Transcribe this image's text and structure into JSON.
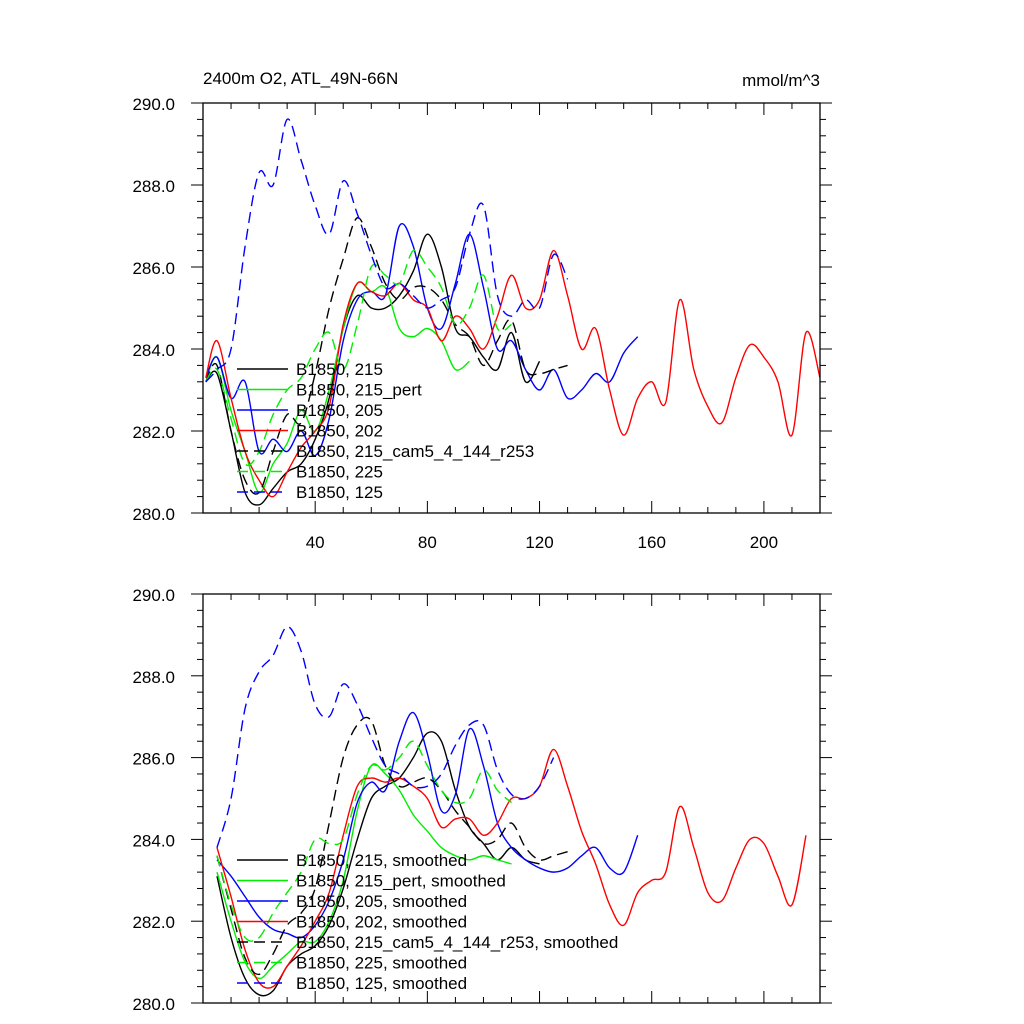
{
  "figure": {
    "title_left": "2400m O2, ATL_49N-66N",
    "title_right": "mmol/m^3"
  },
  "chart_data": [
    {
      "type": "line",
      "title": "2400m O2, ATL_49N-66N",
      "units": "mmol/m^3",
      "xlabel": "",
      "ylabel": "",
      "xlim": [
        0,
        220
      ],
      "ylim": [
        280,
        290
      ],
      "xticks": [
        40,
        80,
        120,
        160,
        200
      ],
      "xtick_labels": [
        "40",
        "80",
        "120",
        "160",
        "200"
      ],
      "yticks": [
        280,
        282,
        284,
        286,
        288,
        290
      ],
      "ytick_labels": [
        "280.0",
        "282.0",
        "284.0",
        "286.0",
        "288.0",
        "290.0"
      ],
      "grid": false,
      "legend_position": "lower-left",
      "series": [
        {
          "name": "B1850, 215",
          "color": "#000000",
          "dash": "solid",
          "x": [
            1,
            5,
            10,
            15,
            20,
            25,
            30,
            35,
            40,
            45,
            50,
            55,
            60,
            65,
            70,
            75,
            80,
            85,
            90,
            95,
            100,
            105,
            110,
            115,
            120
          ],
          "y": [
            283.2,
            283.4,
            282.0,
            280.5,
            280.2,
            280.6,
            281.0,
            281.2,
            281.8,
            282.8,
            284.5,
            285.3,
            285.0,
            285.0,
            285.3,
            285.9,
            286.8,
            286.0,
            284.5,
            284.3,
            283.8,
            283.5,
            284.4,
            283.2,
            283.7
          ]
        },
        {
          "name": "B1850, 215_pert",
          "color": "#00ee00",
          "dash": "solid",
          "x": [
            1,
            5,
            10,
            15,
            20,
            25,
            30,
            35,
            40,
            45,
            50,
            55,
            60,
            65,
            70,
            75,
            80,
            85,
            90,
            95
          ],
          "y": [
            283.2,
            283.8,
            282.5,
            281.5,
            280.5,
            281.2,
            281.7,
            282.5,
            282.0,
            283.0,
            284.5,
            285.6,
            285.4,
            285.5,
            284.5,
            284.3,
            284.5,
            284.2,
            283.5,
            283.7
          ]
        },
        {
          "name": "B1850, 205",
          "color": "#0000ff",
          "dash": "solid",
          "x": [
            1,
            5,
            10,
            15,
            20,
            25,
            30,
            35,
            40,
            45,
            50,
            55,
            60,
            65,
            70,
            75,
            80,
            85,
            90,
            95,
            100,
            105,
            110,
            115,
            120,
            125,
            130,
            135,
            140,
            145,
            150,
            155
          ],
          "y": [
            283.3,
            283.8,
            282.8,
            283.2,
            281.5,
            281.8,
            281.5,
            282.0,
            281.4,
            282.3,
            284.2,
            285.2,
            285.4,
            285.3,
            287.0,
            286.5,
            285.0,
            284.5,
            285.6,
            286.8,
            285.5,
            284.0,
            284.2,
            283.5,
            283.0,
            283.5,
            282.8,
            283.0,
            283.4,
            283.2,
            283.9,
            284.3
          ]
        },
        {
          "name": "B1850, 202",
          "color": "#ff0000",
          "dash": "solid",
          "x": [
            1,
            5,
            10,
            15,
            20,
            25,
            30,
            35,
            40,
            45,
            50,
            55,
            60,
            65,
            70,
            75,
            80,
            85,
            90,
            95,
            100,
            105,
            110,
            115,
            120,
            125,
            130,
            135,
            140,
            145,
            150,
            155,
            160,
            165,
            170,
            175,
            180,
            185,
            190,
            195,
            200,
            205,
            210,
            215,
            220
          ],
          "y": [
            283.3,
            284.2,
            282.8,
            281.5,
            280.8,
            280.4,
            281.0,
            281.6,
            282.0,
            282.6,
            284.6,
            285.6,
            285.4,
            285.3,
            285.6,
            285.2,
            285.0,
            284.2,
            284.8,
            284.5,
            284.0,
            284.8,
            285.8,
            285.0,
            285.2,
            286.4,
            285.3,
            284.0,
            284.5,
            283.0,
            281.9,
            282.8,
            283.2,
            282.7,
            285.2,
            283.5,
            282.6,
            282.2,
            283.3,
            284.1,
            283.8,
            283.2,
            281.9,
            284.4,
            283.3
          ]
        },
        {
          "name": "B1850, 215_cam5_4_144_r253",
          "color": "#000000",
          "dash": "dashed",
          "x": [
            1,
            5,
            10,
            15,
            20,
            25,
            30,
            35,
            40,
            45,
            50,
            55,
            60,
            65,
            70,
            75,
            80,
            85,
            90,
            95,
            100,
            105,
            110,
            115,
            120,
            125,
            130
          ],
          "y": [
            283.2,
            283.6,
            282.0,
            280.8,
            280.5,
            281.5,
            282.4,
            282.2,
            283.4,
            285.0,
            286.2,
            287.2,
            286.5,
            285.6,
            285.2,
            285.5,
            285.5,
            285.2,
            284.6,
            284.3,
            283.6,
            284.2,
            284.7,
            283.5,
            283.4,
            283.5,
            283.6
          ]
        },
        {
          "name": "B1850, 225",
          "color": "#00ee00",
          "dash": "dashed",
          "x": [
            1,
            5,
            10,
            15,
            20,
            25,
            30,
            35,
            40,
            45,
            50,
            55,
            60,
            65,
            70,
            75,
            80,
            85,
            90,
            95,
            100,
            105,
            110
          ],
          "y": [
            283.2,
            283.5,
            282.3,
            281.2,
            281.5,
            282.4,
            283.0,
            283.3,
            284.0,
            284.4,
            283.5,
            284.6,
            286.0,
            285.8,
            285.6,
            286.4,
            286.0,
            285.5,
            284.6,
            285.0,
            285.8,
            284.5,
            284.6
          ]
        },
        {
          "name": "B1850, 125",
          "color": "#0000ff",
          "dash": "dashed",
          "x": [
            1,
            5,
            10,
            15,
            20,
            25,
            30,
            35,
            40,
            45,
            50,
            55,
            60,
            65,
            70,
            75,
            80,
            85,
            90,
            95,
            100,
            105,
            110,
            115,
            120,
            125,
            130
          ],
          "y": [
            283.2,
            283.5,
            284.0,
            286.5,
            288.3,
            288.0,
            289.6,
            288.6,
            287.5,
            286.8,
            288.1,
            287.3,
            286.3,
            285.5,
            285.6,
            285.3,
            285.0,
            285.2,
            285.5,
            286.8,
            287.5,
            285.3,
            284.8,
            285.2,
            285.0,
            286.3,
            285.7
          ]
        }
      ]
    },
    {
      "type": "line",
      "title": "",
      "xlabel": "",
      "ylabel": "",
      "xlim": [
        0,
        220
      ],
      "ylim": [
        280,
        290
      ],
      "xticks": [
        40,
        80,
        120,
        160,
        200
      ],
      "xtick_labels": [],
      "yticks": [
        280,
        282,
        284,
        286,
        288,
        290
      ],
      "ytick_labels": [
        "280.0",
        "282.0",
        "284.0",
        "286.0",
        "288.0",
        "290.0"
      ],
      "grid": false,
      "legend_position": "lower-left",
      "series": [
        {
          "name": "B1850, 215, smoothed",
          "color": "#000000",
          "dash": "solid",
          "x": [
            5,
            10,
            15,
            20,
            25,
            30,
            35,
            40,
            45,
            50,
            55,
            60,
            65,
            70,
            75,
            80,
            85,
            90,
            95,
            100,
            105,
            110,
            115,
            120
          ],
          "y": [
            283.1,
            281.6,
            280.6,
            280.2,
            280.3,
            280.9,
            281.2,
            281.4,
            281.9,
            282.8,
            284.0,
            285.0,
            285.3,
            285.5,
            286.0,
            286.6,
            286.4,
            285.2,
            284.3,
            283.9,
            283.5,
            283.8,
            283.5,
            283.4
          ]
        },
        {
          "name": "B1850, 215_pert, smoothed",
          "color": "#00ee00",
          "dash": "solid",
          "x": [
            5,
            10,
            15,
            20,
            25,
            30,
            35,
            40,
            45,
            50,
            55,
            60,
            65,
            70,
            75,
            80,
            85,
            90,
            95,
            100,
            105,
            110
          ],
          "y": [
            283.2,
            282.0,
            281.0,
            280.6,
            280.9,
            281.2,
            281.5,
            281.5,
            282.0,
            283.0,
            284.7,
            285.8,
            285.6,
            285.2,
            284.6,
            284.2,
            283.8,
            283.6,
            283.5,
            283.6,
            283.5,
            283.4
          ]
        },
        {
          "name": "B1850, 205, smoothed",
          "color": "#0000ff",
          "dash": "solid",
          "x": [
            5,
            10,
            15,
            20,
            25,
            30,
            35,
            40,
            45,
            50,
            55,
            60,
            65,
            70,
            75,
            80,
            85,
            90,
            95,
            100,
            105,
            110,
            115,
            120,
            125,
            130,
            135,
            140,
            145,
            150,
            155
          ],
          "y": [
            283.5,
            283.1,
            282.6,
            282.1,
            281.8,
            281.7,
            281.6,
            281.9,
            282.5,
            283.5,
            284.9,
            285.4,
            285.2,
            286.4,
            287.1,
            286.1,
            284.7,
            285.1,
            286.7,
            285.8,
            284.4,
            283.8,
            283.5,
            283.3,
            283.2,
            283.3,
            283.6,
            283.8,
            283.3,
            283.2,
            284.1
          ]
        },
        {
          "name": "B1850, 202, smoothed",
          "color": "#ff0000",
          "dash": "solid",
          "x": [
            5,
            10,
            15,
            20,
            25,
            30,
            35,
            40,
            45,
            50,
            55,
            60,
            65,
            70,
            75,
            80,
            85,
            90,
            95,
            100,
            105,
            110,
            115,
            120,
            125,
            130,
            135,
            140,
            145,
            150,
            155,
            160,
            165,
            170,
            175,
            180,
            185,
            190,
            195,
            200,
            205,
            210,
            215
          ],
          "y": [
            283.8,
            282.6,
            281.3,
            280.5,
            280.4,
            280.9,
            281.4,
            282.0,
            282.7,
            284.1,
            285.3,
            285.5,
            285.4,
            285.5,
            285.3,
            285.0,
            284.3,
            284.5,
            284.5,
            284.1,
            284.4,
            285.0,
            285.0,
            285.3,
            286.2,
            285.3,
            284.2,
            283.4,
            282.4,
            281.9,
            282.7,
            283.0,
            283.2,
            284.8,
            283.8,
            282.7,
            282.5,
            283.3,
            284.0,
            283.9,
            283.1,
            282.4,
            284.1
          ]
        },
        {
          "name": "B1850, 215_cam5_4_144_r253, smoothed",
          "color": "#000000",
          "dash": "dashed",
          "x": [
            5,
            10,
            15,
            20,
            25,
            30,
            35,
            40,
            45,
            50,
            55,
            60,
            65,
            70,
            75,
            80,
            85,
            90,
            95,
            100,
            105,
            110,
            115,
            120,
            125,
            130
          ],
          "y": [
            283.6,
            282.3,
            281.1,
            280.7,
            281.2,
            281.9,
            282.2,
            282.8,
            284.4,
            286.0,
            286.8,
            286.9,
            285.8,
            285.3,
            285.4,
            285.5,
            285.2,
            284.7,
            284.3,
            283.9,
            284.0,
            284.4,
            283.8,
            283.5,
            283.6,
            283.7
          ]
        },
        {
          "name": "B1850, 225, smoothed",
          "color": "#00ee00",
          "dash": "dashed",
          "x": [
            5,
            10,
            15,
            20,
            25,
            30,
            35,
            40,
            45,
            50,
            55,
            60,
            65,
            70,
            75,
            80,
            85,
            90,
            95,
            100,
            105,
            110
          ],
          "y": [
            283.6,
            282.4,
            281.6,
            281.6,
            282.2,
            282.7,
            283.2,
            284.0,
            283.9,
            284.0,
            285.1,
            285.8,
            285.7,
            286.0,
            286.4,
            285.8,
            285.2,
            284.9,
            285.0,
            285.7,
            285.2,
            284.9
          ]
        },
        {
          "name": "B1850, 125, smoothed",
          "color": "#0000ff",
          "dash": "dashed",
          "x": [
            5,
            10,
            15,
            20,
            25,
            30,
            35,
            40,
            45,
            50,
            55,
            60,
            65,
            70,
            75,
            80,
            85,
            90,
            95,
            100,
            105,
            110,
            115,
            120,
            125
          ],
          "y": [
            283.8,
            285.0,
            287.2,
            288.1,
            288.5,
            289.2,
            288.6,
            287.3,
            287.0,
            287.8,
            287.3,
            286.5,
            285.8,
            285.6,
            285.3,
            285.3,
            285.6,
            286.3,
            286.8,
            286.8,
            285.7,
            285.1,
            285.0,
            285.3,
            286.0
          ]
        }
      ]
    }
  ]
}
